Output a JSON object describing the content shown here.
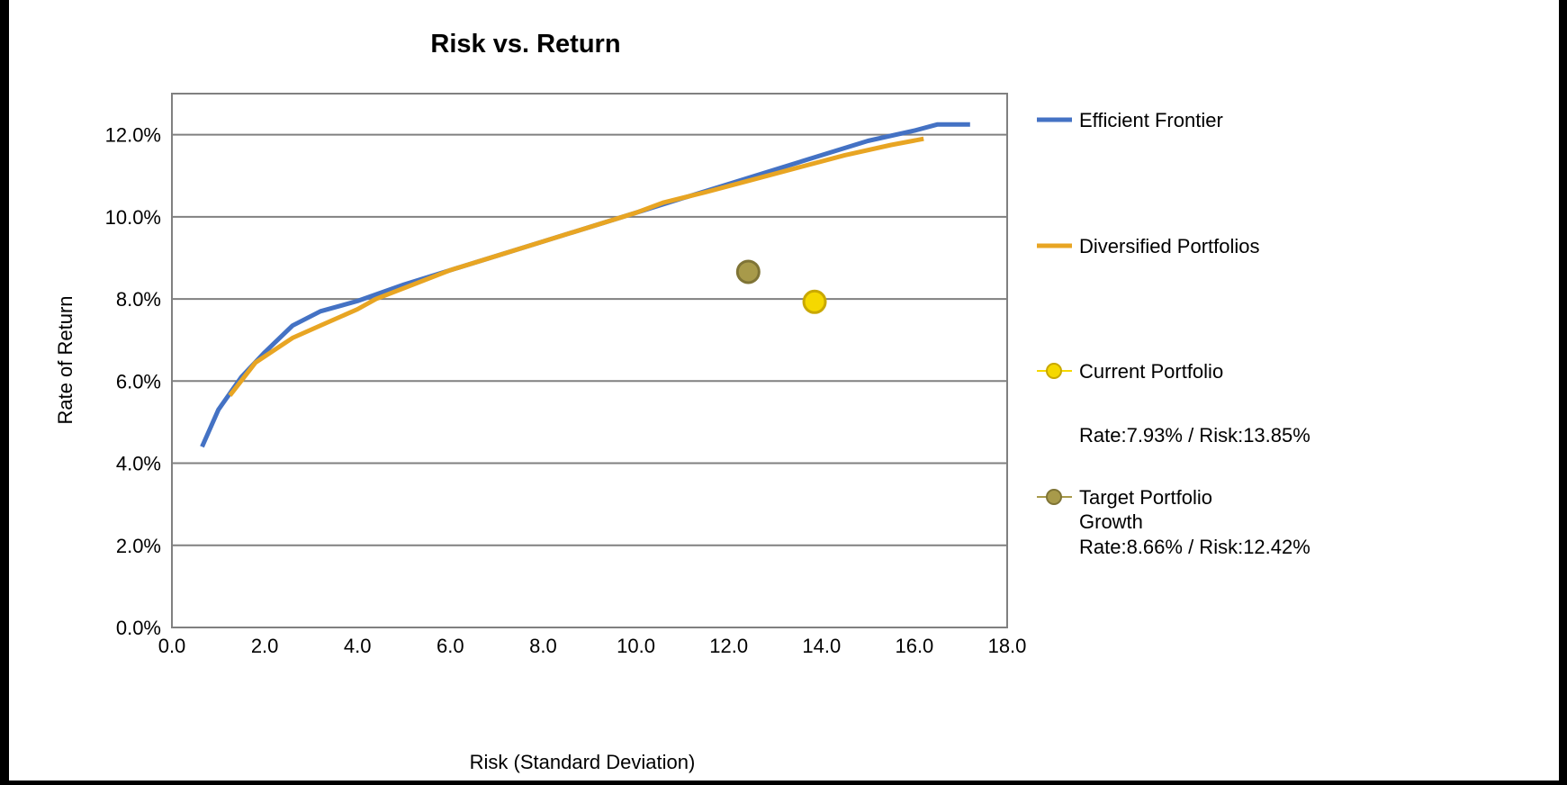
{
  "chart_data": {
    "type": "scatter",
    "title": "Risk vs. Return",
    "xlabel": "Risk (Standard Deviation)",
    "ylabel": "Rate of Return",
    "xlim": [
      0,
      18
    ],
    "ylim": [
      0,
      0.13
    ],
    "x_ticks": [
      "0.0",
      "2.0",
      "4.0",
      "6.0",
      "8.0",
      "10.0",
      "12.0",
      "14.0",
      "16.0",
      "18.0"
    ],
    "y_ticks": [
      "0.0%",
      "2.0%",
      "4.0%",
      "6.0%",
      "8.0%",
      "10.0%",
      "12.0%"
    ],
    "grid": "horizontal",
    "legend_position": "right",
    "series": [
      {
        "name": "Efficient Frontier",
        "kind": "line",
        "color": "#4472C4",
        "points": [
          [
            0.65,
            0.044
          ],
          [
            1.0,
            0.053
          ],
          [
            1.5,
            0.061
          ],
          [
            2.0,
            0.067
          ],
          [
            2.6,
            0.0735
          ],
          [
            3.2,
            0.077
          ],
          [
            4.0,
            0.0795
          ],
          [
            5.0,
            0.0835
          ],
          [
            6.0,
            0.087
          ],
          [
            7.0,
            0.0905
          ],
          [
            8.0,
            0.094
          ],
          [
            9.0,
            0.0975
          ],
          [
            10.0,
            0.101
          ],
          [
            11.0,
            0.1045
          ],
          [
            12.0,
            0.108
          ],
          [
            13.0,
            0.1115
          ],
          [
            14.0,
            0.115
          ],
          [
            15.0,
            0.1185
          ],
          [
            16.0,
            0.121
          ],
          [
            16.5,
            0.1225
          ],
          [
            17.2,
            0.1225
          ]
        ]
      },
      {
        "name": "Diversified Portfolios",
        "kind": "line",
        "color": "#E8A523",
        "points": [
          [
            1.25,
            0.0565
          ],
          [
            1.8,
            0.0645
          ],
          [
            2.6,
            0.0705
          ],
          [
            3.3,
            0.074
          ],
          [
            4.0,
            0.0775
          ],
          [
            4.4,
            0.08
          ],
          [
            5.2,
            0.0835
          ],
          [
            6.0,
            0.087
          ],
          [
            7.0,
            0.0905
          ],
          [
            8.0,
            0.094
          ],
          [
            9.0,
            0.0975
          ],
          [
            10.0,
            0.101
          ],
          [
            10.6,
            0.1035
          ],
          [
            11.5,
            0.106
          ],
          [
            12.5,
            0.109
          ],
          [
            13.5,
            0.112
          ],
          [
            14.5,
            0.115
          ],
          [
            15.5,
            0.1175
          ],
          [
            16.2,
            0.119
          ]
        ]
      },
      {
        "name": "Current Portfolio",
        "kind": "point",
        "color": "#F5D800",
        "stroke": "#C9A800",
        "x": 13.85,
        "y": 0.0793,
        "detail": "Rate:7.93% / Risk:13.85%"
      },
      {
        "name": "Target Portfolio",
        "name_line2": "Growth",
        "kind": "point",
        "color": "#A89A4A",
        "stroke": "#7F7436",
        "x": 12.42,
        "y": 0.0866,
        "detail": "Rate:8.66% / Risk:12.42%"
      }
    ]
  }
}
